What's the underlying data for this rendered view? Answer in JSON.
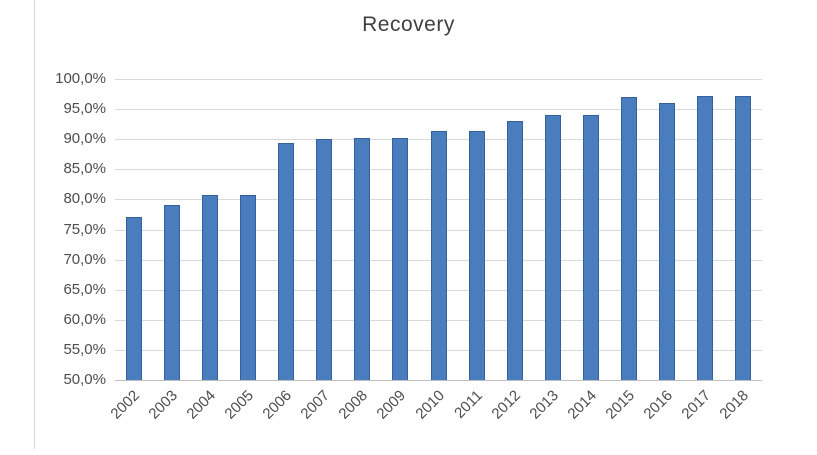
{
  "chart_data": {
    "type": "bar",
    "title": "Recovery",
    "categories": [
      "2002",
      "2003",
      "2004",
      "2005",
      "2006",
      "2007",
      "2008",
      "2009",
      "2010",
      "2011",
      "2012",
      "2013",
      "2014",
      "2015",
      "2016",
      "2017",
      "2018"
    ],
    "values": [
      77.1,
      79.0,
      80.7,
      80.7,
      89.4,
      90.0,
      90.2,
      90.2,
      91.3,
      91.3,
      93.0,
      94.0,
      94.0,
      97.0,
      96.0,
      97.2,
      97.2
    ],
    "xlabel": "",
    "ylabel": "",
    "ylim": [
      50,
      100
    ],
    "y_ticks": {
      "values": [
        100,
        95,
        90,
        85,
        80,
        75,
        70,
        65,
        60,
        55,
        50
      ],
      "labels": [
        "100,0%",
        "95,0%",
        "90,0%",
        "85,0%",
        "80,0%",
        "75,0%",
        "70,0%",
        "65,0%",
        "60,0%",
        "55,0%",
        "50,0%"
      ]
    },
    "grid": "horizontal",
    "legend": "none",
    "colors": {
      "bar_fill": "#4a7dbe",
      "bar_border": "#36609a",
      "gridline": "#d9d9d9",
      "axis_line": "#bfbfbf",
      "tick_text": "#4d4d4d",
      "title_text": "#404040",
      "background": "#ffffff",
      "page_edge_line": "#d8d8d8"
    }
  }
}
